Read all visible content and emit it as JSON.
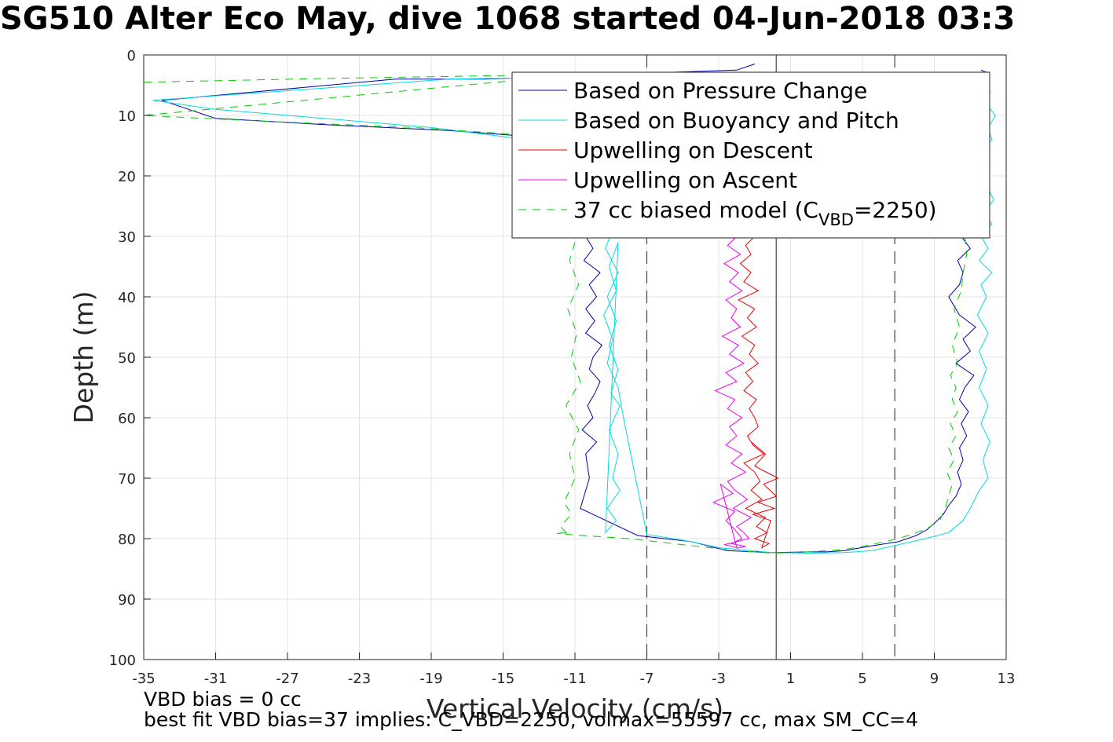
{
  "figure": {
    "title": "SG510 Alter Eco May, dive 1068 started 04-Jun-2018 03:3",
    "footer_line1": "VBD bias = 0 cc",
    "footer_line2": "best fit VBD bias=37 implies: C_VBD=2250, volmax=55597 cc, max SM_CC=4"
  },
  "chart_data": {
    "type": "line",
    "xlabel": "Vertical Velocity (cm/s)",
    "ylabel": "Depth (m)",
    "xlim": [
      -35,
      13
    ],
    "ylim": [
      0,
      100
    ],
    "y_reversed": true,
    "xticks": [
      -35,
      -31,
      -27,
      -23,
      -19,
      -15,
      -11,
      -7,
      -3,
      1,
      5,
      9,
      13
    ],
    "yticks": [
      0,
      10,
      20,
      30,
      40,
      50,
      60,
      70,
      80,
      90,
      100
    ],
    "grid": true,
    "legend_position": "top-right",
    "reference_lines": [
      {
        "x": 0.2,
        "style": "solid",
        "color": "#444444"
      },
      {
        "x": -7,
        "style": "dashed",
        "color": "#444444"
      },
      {
        "x": 6.8,
        "style": "dashed",
        "color": "#444444"
      }
    ],
    "series": [
      {
        "name": "Based on Pressure Change",
        "color": "#0000aa",
        "dash": "none",
        "x": [
          -1,
          -2,
          -7,
          -16,
          -21,
          -34,
          -31,
          -25,
          -18,
          -13.5,
          -11,
          -10,
          -10.2,
          -10,
          -10.4,
          -10.1,
          -10.6,
          -9.9,
          -10.4,
          -10,
          -10.5,
          -9.6,
          -10.2,
          -9.8,
          -10.4,
          -9.9,
          -10.4,
          -9.5,
          -10,
          -10.2,
          -9.6,
          -9.9,
          -10.3,
          -10,
          -10.6,
          -9.8,
          -10.4,
          -10.2,
          -10.7,
          -7.5,
          -4.5,
          -3.2,
          -2.5,
          0,
          2,
          3,
          4,
          5.5,
          7,
          8,
          8.6,
          9.1,
          9.5,
          9.8,
          10.2,
          10.5,
          10.3,
          10.6,
          10.4,
          10.8,
          10.5,
          10.9,
          10.4,
          10.7,
          11.2,
          10.2,
          11,
          10.6,
          11.3,
          10.4,
          9.8,
          10.4,
          10.6,
          10.3,
          11,
          10.5,
          11.2,
          10.6,
          11,
          10.5,
          10.7,
          10.4,
          10.6,
          11,
          11.2,
          10.5,
          10.9,
          11.3,
          11.7,
          12,
          11.6
        ],
        "y": [
          1.5,
          2.5,
          3,
          4,
          4,
          7.5,
          10.5,
          11.5,
          12.5,
          13.5,
          14.5,
          16,
          18,
          20,
          22,
          24,
          26,
          28,
          30,
          32,
          34,
          36,
          38,
          40,
          42,
          44,
          46,
          48,
          50,
          52,
          54,
          56,
          58,
          60,
          62,
          64,
          66,
          70,
          75,
          79.5,
          80.5,
          81.5,
          82,
          82.3,
          82.2,
          82.2,
          82,
          81.2,
          80.5,
          79.5,
          78.5,
          77.2,
          76,
          74.5,
          73,
          71,
          69,
          67,
          65,
          63,
          61,
          59,
          57,
          55,
          53,
          51,
          49,
          47,
          45,
          43,
          40,
          38,
          36,
          34,
          32,
          30,
          28,
          26,
          24,
          22,
          20,
          18,
          16,
          14,
          12,
          10,
          8,
          6,
          4,
          3,
          2.5
        ]
      },
      {
        "name": "Based on Buoyancy and Pitch",
        "color": "#00dddd",
        "dash": "none",
        "x": [
          0.5,
          -8,
          -18,
          -34.5,
          -31,
          -25,
          -19,
          -15,
          -12,
          -10,
          -9,
          -9.1,
          -8.8,
          -9.3,
          -8.6,
          -9.2,
          -8.7,
          -9.1,
          -8.6,
          -9,
          -8.5,
          -9.1,
          -8.6,
          -8.9,
          -8.5,
          -9.2,
          -8.7,
          -9.3,
          -8.6,
          -9.1,
          -8.7,
          -9.4,
          -8.9,
          -9.2,
          -8.6,
          -8.3,
          -7,
          -4.5,
          -3,
          0,
          2,
          4,
          5.5,
          7,
          8.5,
          9.8,
          10.6,
          11,
          11.5,
          12,
          11.7,
          12.1,
          11.6,
          12,
          11.5,
          11.9,
          11.5,
          12,
          11.4,
          11.9,
          11.6,
          12.2,
          11.5,
          12,
          11.6,
          12.2,
          11.8,
          12.3,
          12,
          11.7,
          12.1,
          11.6,
          12.2,
          12,
          12.4,
          12,
          12.1,
          11.8
        ],
        "y": [
          3,
          3.5,
          4,
          7.5,
          9,
          10.5,
          12,
          13.5,
          15,
          17,
          20,
          24,
          28,
          32,
          36,
          40,
          44,
          48,
          52,
          56,
          58,
          62,
          66,
          70,
          72,
          75,
          77,
          79,
          31,
          35,
          39,
          43,
          47,
          51,
          55,
          60,
          79.3,
          80.5,
          81.5,
          82.3,
          82.4,
          82.3,
          82,
          81,
          80,
          79,
          77,
          75,
          72,
          70,
          67,
          64,
          61,
          58,
          55,
          52,
          49,
          46,
          43,
          40,
          38,
          36,
          34,
          32,
          30,
          28,
          26,
          24,
          22,
          20,
          18,
          16,
          14,
          12,
          10,
          8.5,
          6,
          3
        ]
      },
      {
        "name": "Upwelling on Descent",
        "color": "#ee0000",
        "dash": "none",
        "x": [
          -1,
          -1.5,
          -1.2,
          -1.8,
          -1.2,
          -1.6,
          -0.8,
          -1.9,
          -1,
          -1.4,
          -0.9,
          -1.7,
          -1,
          -1.3,
          -0.8,
          -1.5,
          -1.1,
          -1.6,
          -0.9,
          -1.3,
          -1,
          -0.8,
          -1.4,
          -1.1,
          -0.5,
          -1.6,
          -1,
          -0.7,
          -1.2,
          -0.6,
          -1.5,
          -0.4,
          -0.9,
          -0.3,
          -1,
          -0.2,
          -0.6,
          -0.1,
          -1.1,
          0.1,
          -0.8,
          0.2,
          -0.5,
          0.3,
          -1,
          -0.4,
          -1.2
        ],
        "y": [
          30,
          31.5,
          33,
          34.5,
          36,
          37.5,
          39,
          40.5,
          42,
          43.5,
          45,
          46.5,
          48,
          49.5,
          51,
          52.5,
          54,
          55.5,
          57,
          58.5,
          60,
          61.5,
          63,
          64.5,
          66,
          67.5,
          69,
          70.5,
          72,
          73.5,
          75,
          76.5,
          78,
          79,
          80,
          80.8,
          81.5,
          77,
          76,
          75,
          74,
          73,
          71,
          70,
          68,
          66,
          64
        ]
      },
      {
        "name": "Upwelling on Ascent",
        "color": "#ee00ee",
        "dash": "none",
        "x": [
          -2,
          -2.5,
          -1.8,
          -2.7,
          -1.9,
          -2.4,
          -1.7,
          -2.6,
          -2,
          -2.3,
          -1.8,
          -2.8,
          -1.9,
          -2.4,
          -1.6,
          -2.6,
          -2,
          -3.2,
          -2.1,
          -2.5,
          -1.7,
          -2.4,
          -2,
          -2.6,
          -1.7,
          -2.3,
          -1.5,
          -2.5,
          -2.1,
          -1.4,
          -2.2,
          -1.2,
          -2,
          -1.6,
          -1.3,
          -2.7,
          -2,
          -2.9,
          -2.2,
          -3.3,
          -2.1,
          -2.6,
          -2.1,
          -1.7,
          -2.3,
          -1.5,
          -2
        ],
        "y": [
          30,
          31.5,
          33,
          34.5,
          36,
          37.5,
          39,
          40.5,
          42,
          43.5,
          45,
          46.5,
          48,
          49.5,
          51,
          52.5,
          54,
          55.5,
          57,
          58.5,
          60,
          61.5,
          63,
          64.5,
          66,
          67.5,
          69,
          70.5,
          72,
          73.5,
          75,
          76.5,
          78,
          79,
          80,
          81,
          81.5,
          71,
          72.5,
          74,
          75.5,
          77,
          78.5,
          80,
          80.8,
          81.3,
          81.6
        ]
      },
      {
        "name": "37 cc biased model (C_VBD=2250)",
        "legend_main": "37 cc biased model (C",
        "legend_sub": "VBD",
        "legend_tail": "=2250)",
        "color": "#00cc00",
        "dash": "10,8",
        "x": [
          -35,
          -25,
          -15,
          -10,
          -35,
          -28,
          -20,
          -14,
          -11.5,
          -11,
          -10.8,
          -11.2,
          -10.9,
          -11.3,
          -10.8,
          -11.4,
          -10.9,
          -11.2,
          -10.7,
          -11.5,
          -10.8,
          -11.3,
          -11,
          -11.6,
          -11.2,
          -11.8,
          -11.5,
          -12,
          -11.4,
          -11.9,
          -11.6,
          -11.4,
          -8,
          -5,
          -2,
          0,
          2,
          4,
          5.5,
          7,
          8.5,
          9.3,
          9.6,
          9.8,
          10,
          9.7,
          10.1,
          9.8,
          10.2,
          9.9,
          10.3,
          10,
          10.2,
          9.9,
          10.3,
          10,
          10.4,
          10.1,
          10.5,
          10.6,
          10.8,
          10.7,
          10.9,
          11,
          11.3,
          11.5,
          11.2,
          11.6,
          12
        ],
        "y": [
          4.5,
          3.9,
          3.4,
          3,
          10,
          11,
          12,
          13.2,
          14.5,
          18,
          22,
          26,
          30,
          34,
          38,
          42,
          46,
          50,
          54,
          58,
          62,
          66,
          70,
          74,
          76,
          78,
          79,
          79.2,
          79,
          79.1,
          79.2,
          79.3,
          80,
          81,
          82,
          82.4,
          82.2,
          81.8,
          81,
          80,
          78.5,
          77,
          75,
          73,
          71,
          69,
          67,
          65,
          63,
          61,
          59,
          57,
          55,
          53,
          51,
          48,
          45,
          42,
          39,
          36,
          33,
          30,
          27,
          24,
          21,
          18,
          15,
          12,
          9
        ]
      }
    ]
  }
}
